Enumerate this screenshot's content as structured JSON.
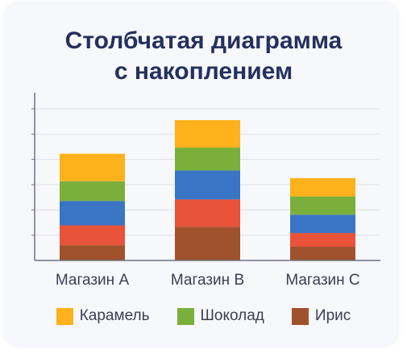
{
  "chart_data": {
    "type": "bar",
    "stacked": true,
    "title_lines": [
      "Столбчатая диаграмма",
      "с накоплением"
    ],
    "categories": [
      "Магазин A",
      "Магазин B",
      "Магазин C"
    ],
    "series": [
      {
        "name": "Ирис",
        "color": "#a0522d",
        "values": [
          0.5,
          1.1,
          0.45
        ]
      },
      {
        "name": "",
        "color": "#e8533a",
        "values": [
          0.65,
          0.9,
          0.45
        ]
      },
      {
        "name": "",
        "color": "#3a74c4",
        "values": [
          0.8,
          0.95,
          0.6
        ]
      },
      {
        "name": "Шоколад",
        "color": "#7aaf3c",
        "values": [
          0.65,
          0.75,
          0.6
        ]
      },
      {
        "name": "Карамель",
        "color": "#fdb21b",
        "values": [
          0.9,
          0.9,
          0.6
        ]
      }
    ],
    "ylim": [
      0,
      5.5
    ],
    "grid": true,
    "legend_position": "bottom",
    "legend": [
      {
        "name": "Карамель",
        "color": "#fdb21b"
      },
      {
        "name": "Шоколад",
        "color": "#7aaf3c"
      },
      {
        "name": "Ирис",
        "color": "#a0522d"
      }
    ]
  }
}
